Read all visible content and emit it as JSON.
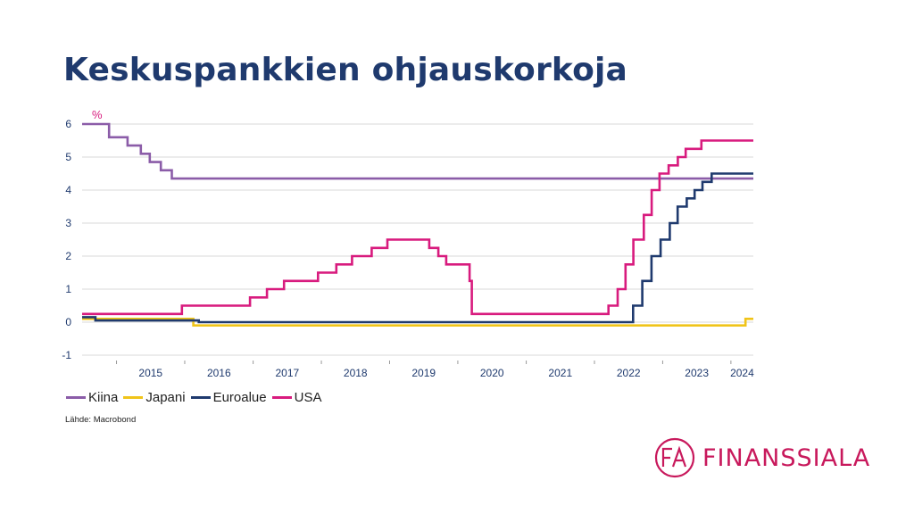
{
  "title": "Keskuspankkien ohjauskorkoja",
  "source": "Lähde: Macrobond",
  "logo": {
    "text": "FINANSSIALA",
    "icon": "finanssiala-fa-logo-icon",
    "monogram": "FA"
  },
  "colors": {
    "kiina": "#8b5ca8",
    "japani": "#f0c419",
    "euroalue": "#1f3a6e",
    "usa": "#d81b7e",
    "title": "#1f3a6e",
    "brand": "#c8195c",
    "axis_unit": "#d81b7e"
  },
  "chart_data": {
    "type": "line",
    "step": true,
    "title": "Keskuspankkien ohjauskorkoja",
    "ylabel": "%",
    "xlabel": "",
    "ylim": [
      -1,
      6
    ],
    "xlim": [
      "2014-07-01",
      "2024-04-30"
    ],
    "yticks": [
      -1,
      0,
      1,
      2,
      3,
      4,
      5,
      6
    ],
    "xtick_labels": [
      "2015",
      "2016",
      "2017",
      "2018",
      "2019",
      "2020",
      "2021",
      "2022",
      "2023",
      "2024"
    ],
    "grid": true,
    "legend_position": "bottom-left",
    "series": [
      {
        "name": "Kiina",
        "x": [
          "2014-07-01",
          "2014-11-22",
          "2015-03-01",
          "2015-05-11",
          "2015-06-28",
          "2015-08-26",
          "2015-10-24",
          "2024-04-30"
        ],
        "y": [
          6.0,
          5.6,
          5.35,
          5.1,
          4.85,
          4.6,
          4.35,
          4.35
        ]
      },
      {
        "name": "Japani",
        "x": [
          "2014-07-01",
          "2016-02-16",
          "2024-03-19",
          "2024-04-30"
        ],
        "y": [
          0.1,
          -0.1,
          0.1,
          0.1
        ]
      },
      {
        "name": "Euroalue",
        "x": [
          "2014-07-01",
          "2014-09-10",
          "2016-03-16",
          "2022-07-27",
          "2022-09-14",
          "2022-11-02",
          "2022-12-21",
          "2023-02-08",
          "2023-03-22",
          "2023-05-10",
          "2023-06-21",
          "2023-08-02",
          "2023-09-20",
          "2024-04-30"
        ],
        "y": [
          0.15,
          0.05,
          0.0,
          0.5,
          1.25,
          2.0,
          2.5,
          3.0,
          3.5,
          3.75,
          4.0,
          4.25,
          4.5,
          4.5
        ]
      },
      {
        "name": "USA",
        "x": [
          "2014-07-01",
          "2015-12-17",
          "2016-12-15",
          "2017-03-16",
          "2017-06-15",
          "2017-12-14",
          "2018-03-22",
          "2018-06-14",
          "2018-09-27",
          "2018-12-20",
          "2019-08-01",
          "2019-09-19",
          "2019-10-31",
          "2020-03-04",
          "2020-03-16",
          "2022-03-17",
          "2022-05-05",
          "2022-06-16",
          "2022-07-28",
          "2022-09-22",
          "2022-11-03",
          "2022-12-15",
          "2023-02-02",
          "2023-03-23",
          "2023-05-04",
          "2023-07-27",
          "2024-04-30"
        ],
        "y": [
          0.25,
          0.5,
          0.75,
          1.0,
          1.25,
          1.5,
          1.75,
          2.0,
          2.25,
          2.5,
          2.25,
          2.0,
          1.75,
          1.25,
          0.25,
          0.5,
          1.0,
          1.75,
          2.5,
          3.25,
          4.0,
          4.5,
          4.75,
          5.0,
          5.25,
          5.5,
          5.5
        ]
      }
    ]
  }
}
